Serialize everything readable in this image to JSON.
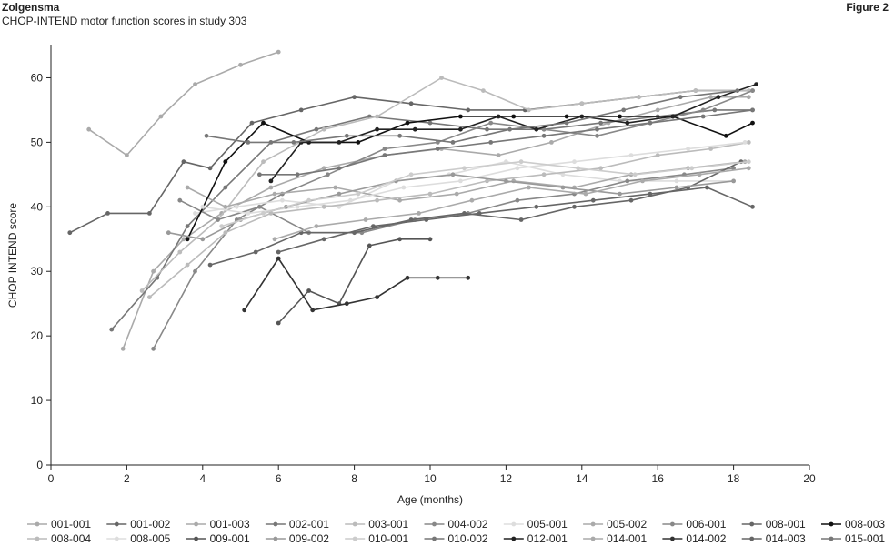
{
  "header": {
    "brand": "Zolgensma",
    "subtitle": "CHOP-INTEND motor function scores in study 303",
    "figure_label": "Figure 2"
  },
  "chart_data": {
    "type": "line",
    "title": "CHOP-INTEND motor function scores in study 303",
    "xlabel": "Age (months)",
    "ylabel": "CHOP INTEND score",
    "xlim": [
      0,
      20
    ],
    "ylim": [
      0,
      65
    ],
    "xticks": [
      0,
      2,
      4,
      6,
      8,
      10,
      12,
      14,
      16,
      18,
      20
    ],
    "yticks": [
      0,
      10,
      20,
      30,
      40,
      50,
      60
    ],
    "grid": false,
    "legend_position": "bottom",
    "series": [
      {
        "name": "001-001",
        "color": "#aaaaaa",
        "x": [
          1.0,
          2.0,
          2.9,
          3.8,
          5.0,
          6.0
        ],
        "y": [
          52,
          48,
          54,
          59,
          62,
          64
        ]
      },
      {
        "name": "001-002",
        "color": "#666666",
        "x": [
          0.5,
          1.5,
          2.6,
          3.5,
          4.2,
          5.3,
          6.6,
          8.0,
          9.5,
          11.0,
          12.5,
          14.0,
          15.5,
          17.0,
          18.5
        ],
        "y": [
          36,
          39,
          39,
          47,
          46,
          53,
          55,
          57,
          56,
          55,
          55,
          56,
          57,
          58,
          58
        ]
      },
      {
        "name": "001-003",
        "color": "#aaaaaa",
        "x": [
          1.9,
          2.7,
          3.5,
          4.5,
          5.8,
          7.2,
          8.8,
          10.3,
          11.8,
          13.2,
          14.7,
          16.0,
          17.4,
          18.4
        ],
        "y": [
          18,
          30,
          35,
          39,
          43,
          46,
          48,
          49,
          48,
          50,
          53,
          55,
          57,
          57
        ]
      },
      {
        "name": "002-001",
        "color": "#777777",
        "x": [
          1.6,
          2.8,
          3.6,
          4.6,
          5.8,
          7.0,
          8.4,
          10.0,
          11.5,
          13.0,
          14.5,
          16.0,
          17.5,
          18.5
        ],
        "y": [
          21,
          29,
          37,
          43,
          50,
          52,
          54,
          53,
          52,
          52,
          53,
          54,
          55,
          55
        ]
      },
      {
        "name": "003-001",
        "color": "#bbbbbb",
        "x": [
          2.4,
          3.4,
          4.4,
          5.6,
          7.2,
          8.6,
          10.3,
          11.4,
          12.6,
          14.0,
          15.5,
          17.0,
          18.4
        ],
        "y": [
          27,
          33,
          38,
          47,
          52,
          54,
          60,
          58,
          55,
          56,
          57,
          58,
          58
        ]
      },
      {
        "name": "004-002",
        "color": "#888888",
        "x": [
          2.7,
          3.8,
          4.9,
          6.1,
          7.3,
          8.8,
          10.2,
          11.6,
          13.0,
          14.4,
          15.8,
          17.2,
          18.5
        ],
        "y": [
          18,
          30,
          38,
          42,
          45,
          49,
          50,
          53,
          52,
          51,
          53,
          55,
          58
        ]
      },
      {
        "name": "005-001",
        "color": "#dddddd",
        "x": [
          3.8,
          4.9,
          6.1,
          7.6,
          9.1,
          10.5,
          12.0,
          13.5,
          15.0,
          16.5,
          18.0
        ],
        "y": [
          39,
          40,
          41,
          40,
          44,
          45,
          47,
          45,
          44,
          44,
          44
        ]
      },
      {
        "name": "005-002",
        "color": "#aaaaaa",
        "x": [
          3.6,
          4.6,
          5.9,
          7.5,
          9.2,
          10.7,
          12.2,
          13.8,
          15.3,
          16.8,
          18.3
        ],
        "y": [
          43,
          40,
          42,
          43,
          41,
          42,
          44,
          43,
          45,
          46,
          47
        ]
      },
      {
        "name": "006-001",
        "color": "#888888",
        "x": [
          3.4,
          4.4,
          5.5,
          6.8,
          8.2,
          9.6,
          11.0,
          12.3,
          13.8,
          15.2,
          16.7,
          18.0
        ],
        "y": [
          41,
          38,
          40,
          36,
          36,
          38,
          39,
          41,
          42,
          44,
          45,
          46
        ]
      },
      {
        "name": "008-001",
        "color": "#666666",
        "x": [
          4.2,
          5.4,
          6.6,
          8.0,
          9.5,
          10.9,
          12.4,
          13.8,
          15.3,
          16.8,
          18.2
        ],
        "y": [
          31,
          33,
          36,
          36,
          38,
          39,
          38,
          40,
          41,
          43,
          47
        ]
      },
      {
        "name": "008-003",
        "color": "#111111",
        "x": [
          3.6,
          4.6,
          5.6,
          6.8,
          8.1,
          9.4,
          10.8,
          12.2,
          13.6,
          15.0,
          16.4,
          17.8,
          18.5
        ],
        "y": [
          35,
          47,
          53,
          50,
          50,
          53,
          54,
          54,
          54,
          54,
          54,
          51,
          53
        ]
      },
      {
        "name": "008-004",
        "color": "#bbbbbb",
        "x": [
          2.6,
          3.6,
          4.6,
          5.8,
          7.2,
          8.6,
          10.0,
          11.5,
          13.0,
          14.5,
          16.0,
          17.4,
          18.4
        ],
        "y": [
          26,
          31,
          36,
          39,
          40,
          41,
          42,
          44,
          45,
          46,
          48,
          49,
          50
        ]
      },
      {
        "name": "008-005",
        "color": "#dddddd",
        "x": [
          4.0,
          5.2,
          6.5,
          7.9,
          9.3,
          10.8,
          12.3,
          13.8,
          15.3,
          16.8,
          18.3
        ],
        "y": [
          40,
          39,
          40,
          41,
          43,
          44,
          46,
          47,
          48,
          49,
          50
        ]
      },
      {
        "name": "009-001",
        "color": "#555555",
        "x": [
          6.0,
          6.8,
          7.6,
          8.4,
          9.2,
          10.0
        ],
        "y": [
          22,
          27,
          25,
          34,
          35,
          35
        ]
      },
      {
        "name": "009-002",
        "color": "#999999",
        "x": [
          3.1,
          4.0,
          5.0,
          6.2,
          7.6,
          9.1,
          10.6,
          12.0,
          13.5,
          15.0,
          16.5,
          18.0
        ],
        "y": [
          36,
          35,
          38,
          40,
          42,
          44,
          45,
          44,
          43,
          42,
          43,
          44
        ]
      },
      {
        "name": "010-001",
        "color": "#cccccc",
        "x": [
          4.5,
          5.6,
          6.8,
          8.1,
          9.5,
          10.9,
          12.4,
          13.9,
          15.4,
          16.9,
          18.4
        ],
        "y": [
          37,
          39,
          41,
          42,
          45,
          46,
          47,
          46,
          45,
          46,
          47
        ]
      },
      {
        "name": "010-002",
        "color": "#777777",
        "x": [
          5.5,
          6.5,
          7.6,
          8.8,
          10.2,
          11.6,
          13.0,
          14.4,
          15.8,
          17.2,
          18.5
        ],
        "y": [
          45,
          45,
          46,
          48,
          49,
          50,
          51,
          52,
          53,
          54,
          55
        ]
      },
      {
        "name": "012-001",
        "color": "#222222",
        "x": [
          5.8,
          6.6,
          7.6,
          8.6,
          9.6,
          10.8,
          11.8,
          12.8,
          14.0,
          15.2,
          16.4,
          17.6,
          18.6
        ],
        "y": [
          44,
          50,
          50,
          52,
          52,
          52,
          54,
          52,
          54,
          53,
          54,
          57,
          59
        ]
      },
      {
        "name": "014-001",
        "color": "#aaaaaa",
        "x": [
          5.9,
          7.0,
          8.3,
          9.7,
          11.1,
          12.6,
          14.1,
          15.6,
          17.1,
          18.4
        ],
        "y": [
          35,
          37,
          38,
          39,
          41,
          43,
          42,
          44,
          45,
          46
        ]
      },
      {
        "name": "014-002",
        "color": "#333333",
        "x": [
          5.1,
          6.0,
          6.9,
          7.8,
          8.6,
          9.4,
          10.2,
          11.0
        ],
        "y": [
          24,
          32,
          24,
          25,
          26,
          29,
          29,
          29
        ]
      },
      {
        "name": "014-003",
        "color": "#666666",
        "x": [
          6.0,
          7.2,
          8.5,
          9.9,
          11.3,
          12.8,
          14.3,
          15.8,
          17.3,
          18.5
        ],
        "y": [
          33,
          35,
          37,
          38,
          39,
          40,
          41,
          42,
          43,
          40
        ]
      },
      {
        "name": "015-001",
        "color": "#777777",
        "x": [
          4.1,
          5.2,
          6.4,
          7.8,
          9.2,
          10.6,
          12.1,
          13.6,
          15.1,
          16.6,
          18.1
        ],
        "y": [
          51,
          50,
          50,
          51,
          51,
          50,
          52,
          53,
          55,
          57,
          58
        ]
      }
    ]
  }
}
